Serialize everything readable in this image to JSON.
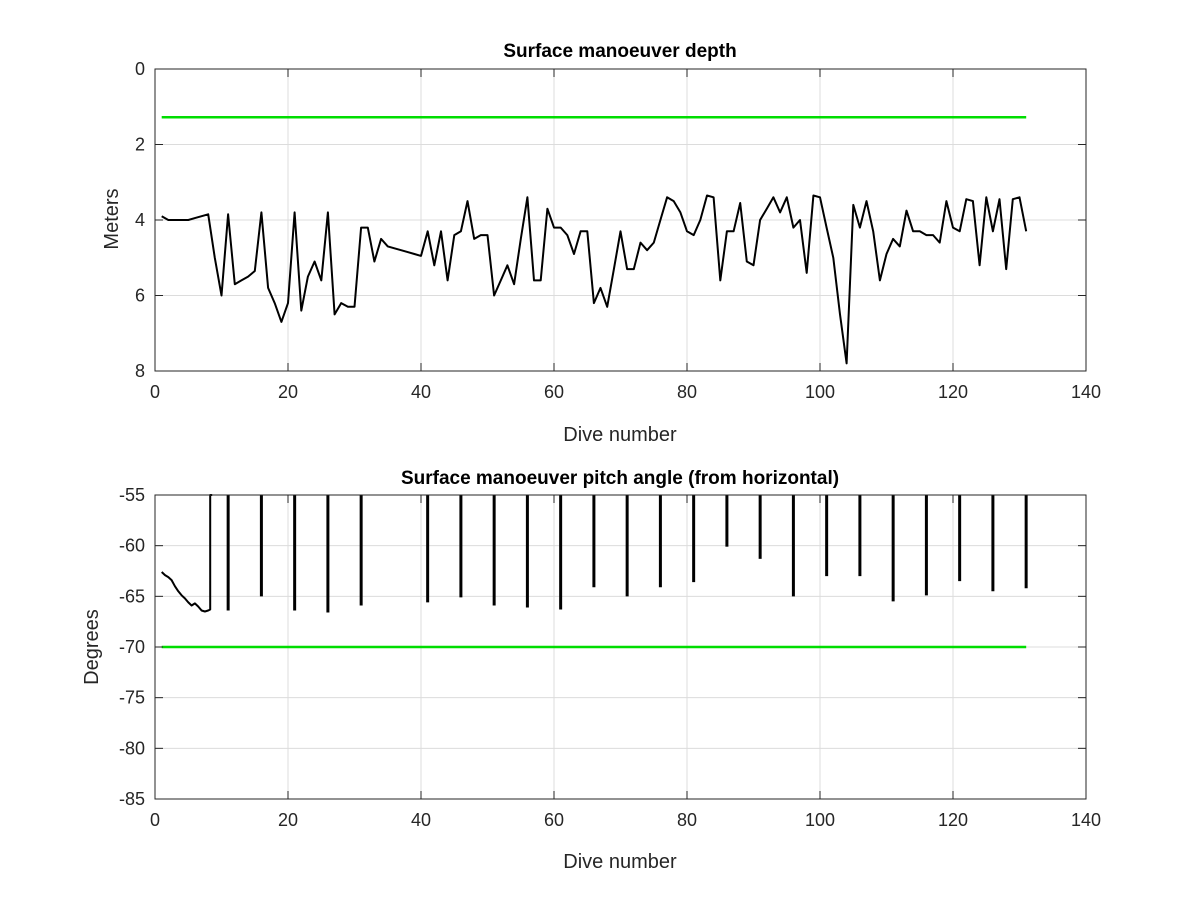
{
  "chart_data": [
    {
      "type": "line",
      "title": "Surface manoeuver depth",
      "xlabel": "Dive number",
      "ylabel": "Meters",
      "xlim": [
        0,
        140
      ],
      "ylim": [
        0,
        8
      ],
      "y_reversed": true,
      "grid": true,
      "xticks": [
        0,
        20,
        40,
        60,
        80,
        100,
        120,
        140
      ],
      "yticks": [
        0,
        2,
        4,
        6,
        8
      ],
      "series": [
        {
          "color": "#000000",
          "x": [
            1,
            2,
            3,
            4,
            5,
            6,
            7,
            8,
            9,
            10,
            11,
            12,
            13,
            14,
            15,
            16,
            17,
            18,
            19,
            20,
            21,
            22,
            23,
            24,
            25,
            26,
            27,
            28,
            29,
            30,
            31,
            32,
            33,
            34,
            35,
            36,
            37,
            38,
            39,
            40,
            41,
            42,
            43,
            44,
            45,
            46,
            47,
            48,
            49,
            50,
            51,
            52,
            53,
            54,
            55,
            56,
            57,
            58,
            59,
            60,
            61,
            62,
            63,
            64,
            65,
            66,
            67,
            68,
            69,
            70,
            71,
            72,
            73,
            74,
            75,
            76,
            77,
            78,
            79,
            80,
            81,
            82,
            83,
            84,
            85,
            86,
            87,
            88,
            89,
            90,
            91,
            92,
            93,
            94,
            95,
            96,
            97,
            98,
            99,
            100,
            101,
            102,
            103,
            104,
            105,
            106,
            107,
            108,
            109,
            110,
            111,
            112,
            113,
            114,
            115,
            116,
            117,
            118,
            119,
            120,
            121,
            122,
            123,
            124,
            125,
            126,
            127,
            128,
            129,
            130,
            131
          ],
          "y": [
            3.9,
            4.0,
            4.0,
            4.0,
            4.0,
            3.95,
            3.9,
            3.85,
            5.0,
            6.0,
            3.85,
            5.7,
            5.6,
            5.5,
            5.35,
            3.8,
            5.8,
            6.2,
            6.7,
            6.2,
            3.8,
            6.4,
            5.5,
            5.1,
            5.6,
            3.8,
            6.5,
            6.2,
            6.3,
            6.3,
            4.2,
            4.2,
            5.1,
            4.5,
            4.7,
            4.75,
            4.8,
            4.85,
            4.9,
            4.95,
            4.3,
            5.2,
            4.3,
            5.6,
            4.4,
            4.3,
            3.5,
            4.5,
            4.4,
            4.4,
            6.0,
            5.6,
            5.2,
            5.7,
            4.5,
            3.4,
            5.6,
            5.6,
            3.7,
            4.2,
            4.2,
            4.4,
            4.9,
            4.3,
            4.3,
            6.2,
            5.8,
            6.3,
            5.3,
            4.3,
            5.3,
            5.3,
            4.6,
            4.8,
            4.6,
            4.0,
            3.4,
            3.5,
            3.8,
            4.3,
            4.4,
            4.0,
            3.35,
            3.4,
            5.6,
            4.3,
            4.3,
            3.55,
            5.1,
            5.2,
            4.0,
            3.7,
            3.4,
            3.8,
            3.4,
            4.2,
            4.0,
            5.4,
            3.35,
            3.4,
            4.2,
            5.0,
            6.5,
            7.8,
            3.6,
            4.2,
            3.5,
            4.3,
            5.6,
            4.9,
            4.5,
            4.7,
            3.75,
            4.3,
            4.3,
            4.4,
            4.4,
            4.6,
            3.5,
            4.2,
            4.3,
            3.45,
            3.5,
            5.2,
            3.4,
            4.3,
            3.45,
            5.3,
            3.45,
            3.4,
            4.3
          ]
        },
        {
          "color": "#00dd00",
          "x": [
            1,
            131
          ],
          "y": [
            1.28,
            1.28
          ]
        }
      ]
    },
    {
      "type": "line",
      "title": "Surface manoeuver pitch angle (from horizontal)",
      "xlabel": "Dive number",
      "ylabel": "Degrees",
      "xlim": [
        0,
        140
      ],
      "ylim": [
        -85,
        -55
      ],
      "grid": true,
      "xticks": [
        0,
        20,
        40,
        60,
        80,
        100,
        120,
        140
      ],
      "yticks": [
        -55,
        -60,
        -65,
        -70,
        -75,
        -80,
        -85
      ],
      "series": [
        {
          "color": "#000000",
          "x": [
            1,
            1.5,
            2,
            2.5,
            3,
            3.5,
            4,
            4.5,
            5,
            5.5,
            6,
            6.5,
            7,
            7.5,
            8,
            8.3,
            8.3,
            8.6
          ],
          "y": [
            -62.6,
            -62.9,
            -63.1,
            -63.4,
            -64.0,
            -64.5,
            -64.9,
            -65.2,
            -65.6,
            -65.9,
            -65.7,
            -66.0,
            -66.4,
            -66.5,
            -66.4,
            -66.3,
            -55,
            -55
          ]
        },
        {
          "color": "#000000",
          "spikes": true,
          "x": [
            11,
            16,
            21,
            26,
            31,
            41,
            46,
            51,
            56,
            61,
            66,
            71,
            76,
            81,
            86,
            91,
            96,
            101,
            106,
            111,
            116,
            121,
            126,
            131
          ],
          "y": [
            -66.4,
            -65.0,
            -66.4,
            -66.6,
            -65.9,
            -65.6,
            -65.1,
            -65.9,
            -66.1,
            -66.3,
            -64.1,
            -65.0,
            -64.1,
            -63.6,
            -60.1,
            -61.3,
            -65.0,
            -63.0,
            -63.0,
            -65.5,
            -64.9,
            -63.5,
            -64.5,
            -64.2
          ]
        },
        {
          "color": "#00dd00",
          "x": [
            1,
            131
          ],
          "y": [
            -70,
            -70
          ]
        }
      ]
    }
  ]
}
